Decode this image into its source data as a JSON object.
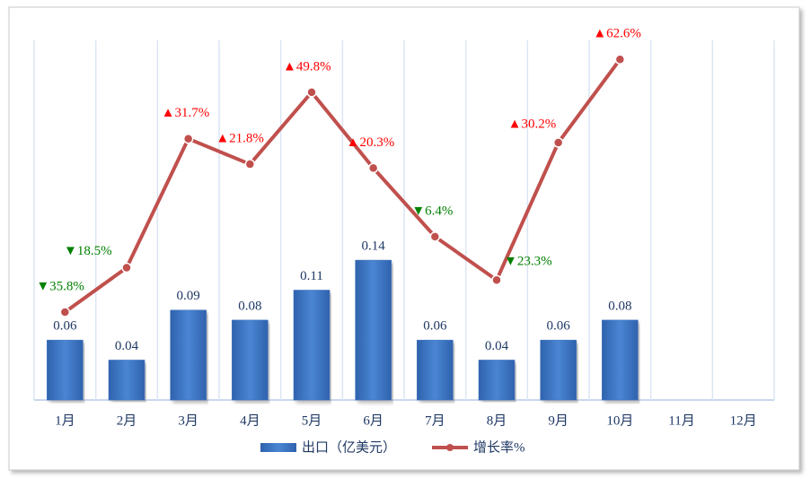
{
  "chart_data": {
    "type": "bar-line",
    "categories": [
      "1月",
      "2月",
      "3月",
      "4月",
      "5月",
      "6月",
      "7月",
      "8月",
      "9月",
      "10月",
      "11月",
      "12月"
    ],
    "series": [
      {
        "name": "出口（亿美元）",
        "type": "bar",
        "color": "#3b74c2",
        "values": [
          0.06,
          0.04,
          0.09,
          0.08,
          0.11,
          0.14,
          0.06,
          0.04,
          0.06,
          0.08,
          null,
          null
        ]
      },
      {
        "name": "增长率%",
        "type": "line",
        "axis": "y2",
        "color": "#c0504d",
        "values": [
          -35.8,
          -18.5,
          31.7,
          21.8,
          49.8,
          20.3,
          -6.4,
          -23.3,
          30.2,
          62.6,
          null,
          null
        ],
        "value_labels": [
          "▼35.8%",
          "▼18.5%",
          "▲31.7%",
          "▲21.8%",
          "▲49.8%",
          "▲20.3%",
          "▼6.4%",
          "▼23.3%",
          "▲30.2%",
          "▲62.6%",
          null,
          null
        ]
      }
    ],
    "ylim": [
      0,
      0.36
    ],
    "y2lim": [
      -70,
      70
    ],
    "up_color": "#ff0000",
    "down_color": "#008000",
    "legend": "bottom"
  }
}
